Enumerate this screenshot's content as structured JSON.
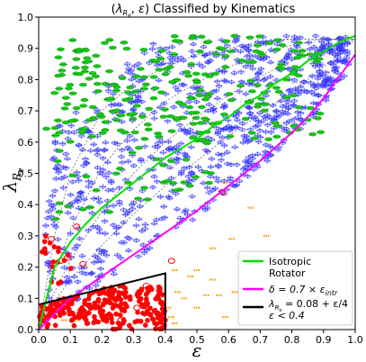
{
  "chart_data": {
    "type": "scatter",
    "title_parts": {
      "pre": "(",
      "lambda": "λ",
      "sub": "R",
      "subsub": "e",
      "mid": ", ",
      "eps": "ε",
      "post": ") Classified by Kinematics"
    },
    "xlabel": "ε",
    "ylabel_parts": {
      "lambda": "λ",
      "sub": "R",
      "subsub": "e"
    },
    "xlim": [
      0.0,
      1.0
    ],
    "ylim": [
      0.0,
      1.0
    ],
    "xticks": [
      "0.0",
      "0.1",
      "0.2",
      "0.3",
      "0.4",
      "0.5",
      "0.6",
      "0.7",
      "0.8",
      "0.9",
      "1.0"
    ],
    "yticks": [
      "0.0",
      "0.1",
      "0.2",
      "0.3",
      "0.4",
      "0.5",
      "0.6",
      "0.7",
      "0.8",
      "0.9",
      "1.0"
    ],
    "grid": false,
    "legend": {
      "placement": "lower-right",
      "entries": [
        {
          "color": "#00e000",
          "lines": [
            "Isotropic",
            "Rotator"
          ]
        },
        {
          "color": "#ff00ff",
          "lines": [
            "δ = 0.7 × ε",
            "intr"
          ]
        },
        {
          "color": "#000000",
          "lines": [
            "λ",
            "R",
            "e",
            " = 0.08 + ε/4",
            "ε < 0.4"
          ]
        }
      ]
    },
    "curves": {
      "isotropic_rotator": {
        "color": "#00e000",
        "x": [
          0.0,
          0.05,
          0.1,
          0.15,
          0.2,
          0.25,
          0.3,
          0.35,
          0.4,
          0.45,
          0.5,
          0.55,
          0.6,
          0.65,
          0.7,
          0.75,
          0.8,
          0.85,
          0.9,
          0.95,
          1.0
        ],
        "y": [
          0.0,
          0.2,
          0.28,
          0.34,
          0.39,
          0.43,
          0.47,
          0.51,
          0.55,
          0.58,
          0.61,
          0.65,
          0.68,
          0.72,
          0.75,
          0.79,
          0.82,
          0.86,
          0.89,
          0.92,
          0.94
        ]
      },
      "delta_0p7": {
        "color": "#ff00ff",
        "x": [
          0.0,
          0.1,
          0.2,
          0.3,
          0.4,
          0.5,
          0.6,
          0.7,
          0.8,
          0.85,
          0.9,
          0.95,
          1.0
        ],
        "y": [
          0.0,
          0.1,
          0.17,
          0.24,
          0.31,
          0.38,
          0.46,
          0.54,
          0.63,
          0.68,
          0.74,
          0.81,
          0.88
        ]
      },
      "dashed_anisotropy": [
        {
          "x": [
            0.0,
            0.05,
            0.1,
            0.2,
            0.3,
            0.4,
            0.5,
            0.6,
            0.7,
            0.8,
            0.9,
            1.0
          ],
          "y": [
            0.0,
            0.09,
            0.16,
            0.27,
            0.37,
            0.46,
            0.54,
            0.62,
            0.69,
            0.76,
            0.84,
            0.93
          ]
        },
        {
          "x": [
            0.0,
            0.05,
            0.1,
            0.2,
            0.3,
            0.4,
            0.5,
            0.6,
            0.7,
            0.8,
            0.9,
            1.0
          ],
          "y": [
            0.0,
            0.12,
            0.22,
            0.38,
            0.5,
            0.6,
            0.68,
            0.75,
            0.81,
            0.86,
            0.9,
            0.93
          ]
        },
        {
          "x": [
            0.0,
            0.05,
            0.1,
            0.2,
            0.3,
            0.4,
            0.5,
            0.6,
            0.7,
            0.8,
            0.9,
            1.0
          ],
          "y": [
            0.0,
            0.18,
            0.32,
            0.52,
            0.64,
            0.73,
            0.79,
            0.84,
            0.88,
            0.91,
            0.93,
            0.93
          ]
        },
        {
          "x": [
            0.0,
            0.05,
            0.1,
            0.2,
            0.3,
            0.4,
            0.5,
            0.6,
            0.7,
            0.8,
            0.9,
            1.0
          ],
          "y": [
            0.0,
            0.3,
            0.5,
            0.7,
            0.79,
            0.84,
            0.88,
            0.9,
            0.92,
            0.93,
            0.93,
            0.93
          ]
        }
      ],
      "dashed_horizontals": [
        {
          "x": [
            0.75,
            1.0
          ],
          "y": [
            0.93,
            0.93
          ]
        },
        {
          "x": [
            0.8,
            0.88
          ],
          "y": [
            0.79,
            0.79
          ]
        }
      ],
      "selection_box": {
        "color": "#000000",
        "x": [
          0.0,
          0.4,
          0.4
        ],
        "y": [
          0.08,
          0.18,
          0.0
        ]
      }
    },
    "series": [
      {
        "name": "blue_crosses",
        "color": "#0000ff",
        "marker": "cross-ellipse",
        "regions": [
          {
            "x": [
              0.02,
              0.98
            ],
            "y_low_curve": "delta_0p7",
            "y_high": 0.94,
            "count": 900
          }
        ]
      },
      {
        "name": "green_ellipses",
        "color": "#00e000",
        "marker": "ellipse",
        "regions": [
          {
            "x": [
              0.05,
              0.9
            ],
            "y": [
              0.6,
              0.94
            ],
            "count": 220
          },
          {
            "x": [
              0.02,
              0.55
            ],
            "y": [
              0.35,
              0.75
            ],
            "count": 70
          }
        ]
      },
      {
        "name": "red_dots",
        "color": "#ff0000",
        "marker": "dot",
        "regions": [
          {
            "x": [
              0.0,
              0.4
            ],
            "y": [
              0.0,
              0.14
            ],
            "count": 260
          },
          {
            "x": [
              0.0,
              0.12
            ],
            "y": [
              0.14,
              0.3
            ],
            "count": 18
          }
        ]
      },
      {
        "name": "red_open",
        "color": "#ff0000",
        "marker": "open-circle",
        "points": [
          [
            0.04,
            0.29
          ],
          [
            0.07,
            0.22
          ],
          [
            0.09,
            0.23
          ],
          [
            0.12,
            0.33
          ],
          [
            0.14,
            0.21
          ],
          [
            0.2,
            0.08
          ],
          [
            0.26,
            0.03
          ],
          [
            0.31,
            0.07
          ],
          [
            0.35,
            0.06
          ],
          [
            0.42,
            0.22
          ],
          [
            0.58,
            0.44
          ],
          [
            0.64,
            0.23
          ],
          [
            0.34,
            0.14
          ]
        ]
      },
      {
        "name": "orange_dashes",
        "color": "#ff9900",
        "marker": "dash",
        "points": [
          [
            0.03,
            0.04
          ],
          [
            0.08,
            0.03
          ],
          [
            0.12,
            0.03
          ],
          [
            0.22,
            0.09
          ],
          [
            0.34,
            0.08
          ],
          [
            0.41,
            0.07
          ],
          [
            0.42,
            0.04
          ],
          [
            0.44,
            0.12
          ],
          [
            0.46,
            0.1
          ],
          [
            0.48,
            0.17
          ],
          [
            0.5,
            0.19
          ],
          [
            0.5,
            0.07
          ],
          [
            0.53,
            0.11
          ],
          [
            0.55,
            0.16
          ],
          [
            0.57,
            0.11
          ],
          [
            0.59,
            0.04
          ],
          [
            0.62,
            0.12
          ],
          [
            0.64,
            0.13
          ],
          [
            0.66,
            0.14
          ],
          [
            0.7,
            0.05
          ],
          [
            0.43,
            0.02
          ],
          [
            0.61,
            0.29
          ],
          [
            0.55,
            0.26
          ],
          [
            0.72,
            0.3
          ],
          [
            0.67,
            0.39
          ],
          [
            0.59,
            0.47
          ],
          [
            0.43,
            0.19
          ]
        ]
      }
    ]
  }
}
